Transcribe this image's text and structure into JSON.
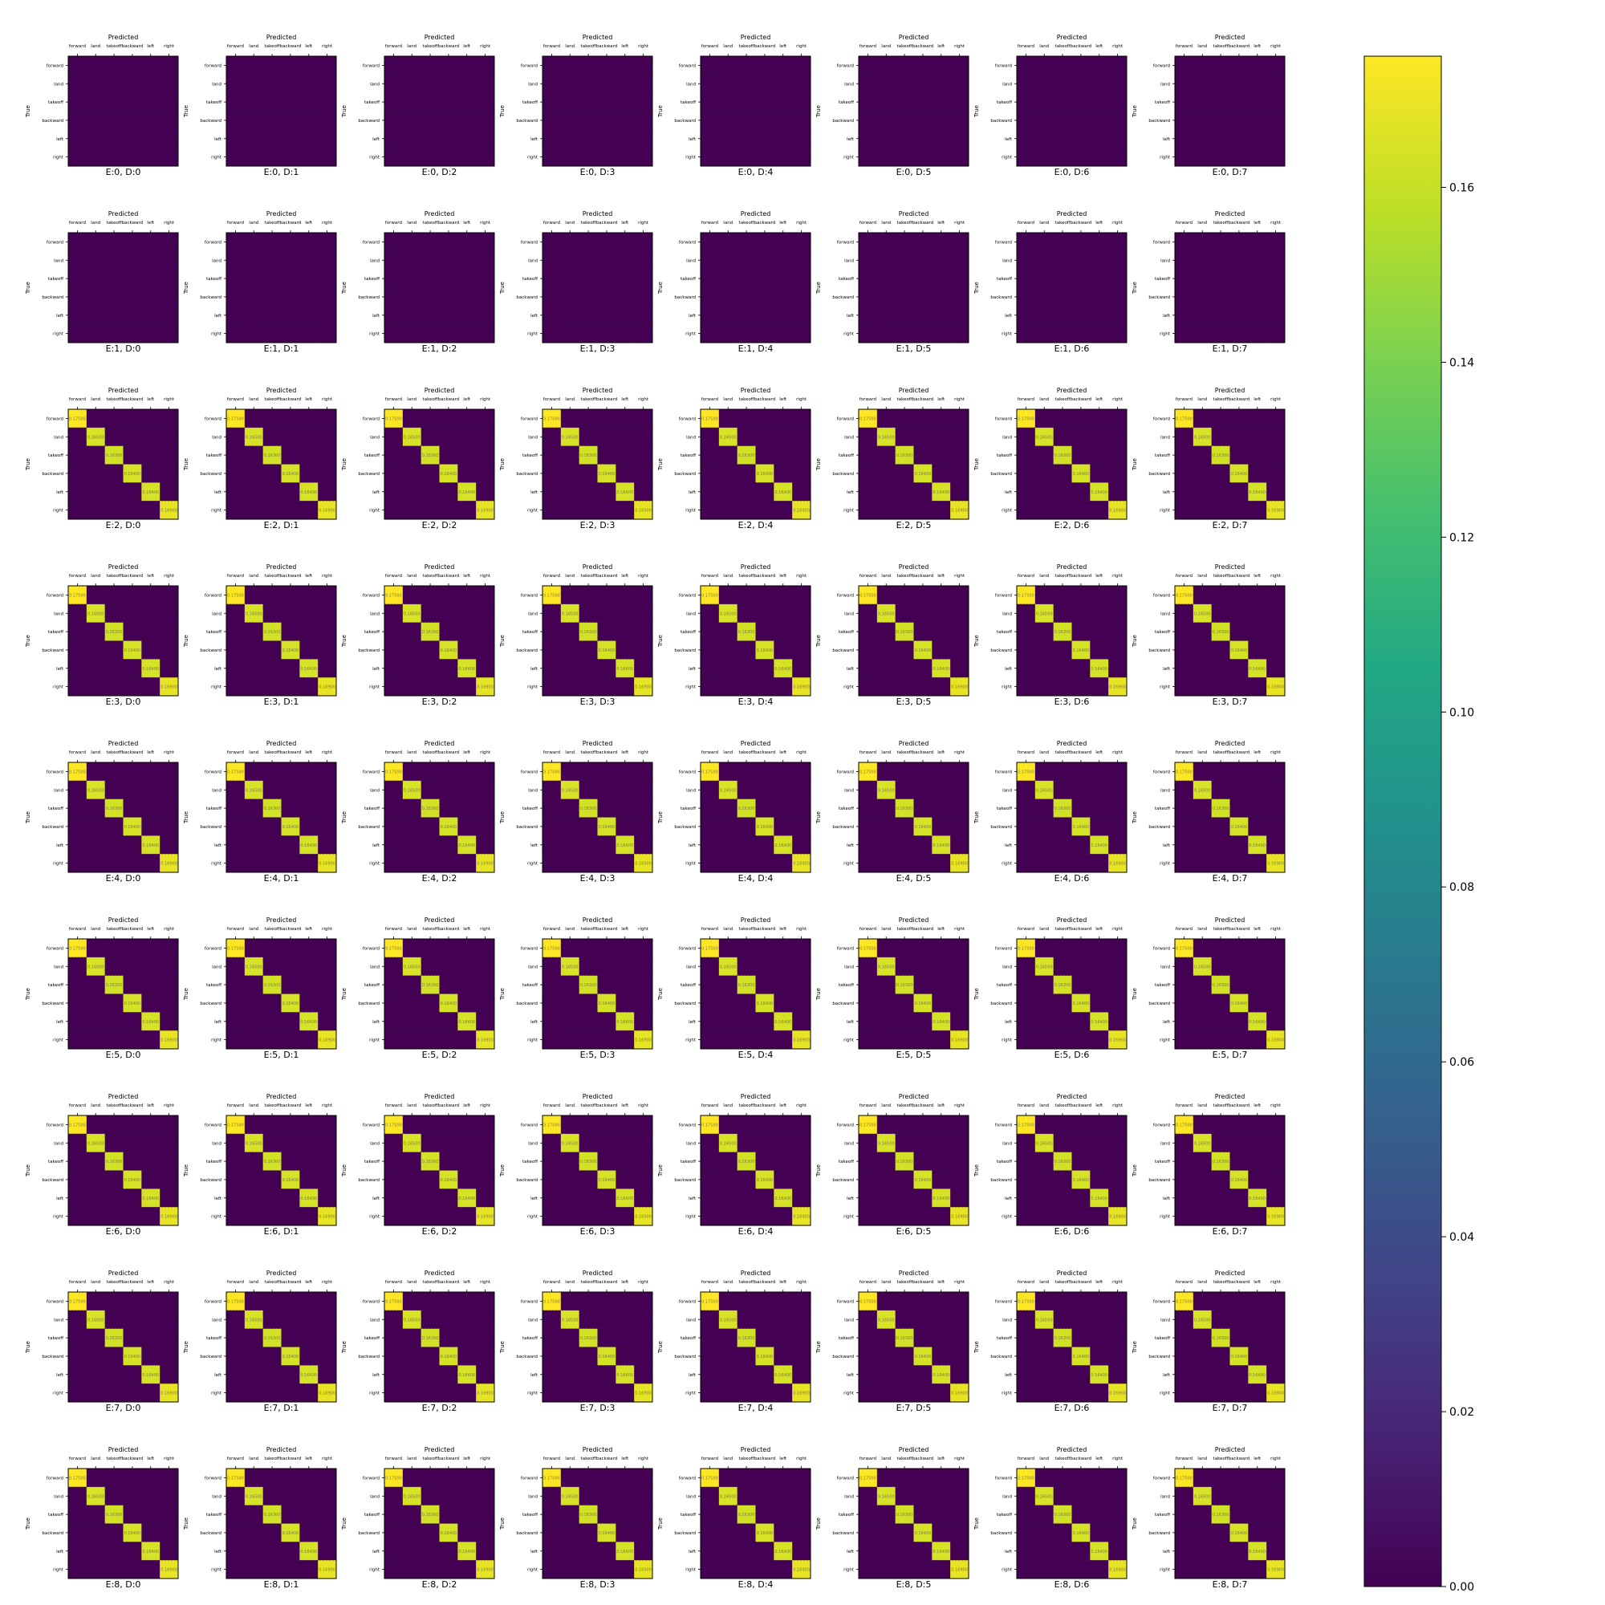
{
  "chart_data": {
    "type": "heatmap",
    "grid_rows": [
      "E:0",
      "E:1",
      "E:2",
      "E:3",
      "E:4",
      "E:5",
      "E:6",
      "E:7",
      "E:8"
    ],
    "grid_cols": [
      "D:0",
      "D:1",
      "D:2",
      "D:3",
      "D:4",
      "D:5",
      "D:6",
      "D:7"
    ],
    "subplot_xlabel": "Predicted",
    "subplot_ylabel": "True",
    "classes": [
      "forward",
      "land",
      "takeoff",
      "backward",
      "left",
      "right"
    ],
    "blank_rows": [
      "E:0",
      "E:1"
    ],
    "diagonal_values": [
      0.175,
      0.165,
      0.163,
      0.164,
      0.164,
      0.169
    ],
    "off_diagonal_value": 0.0,
    "cell_text_color": "#7f7f3f",
    "colormap": "viridis",
    "colorbar": {
      "min": 0.0,
      "max": 0.175,
      "ticks": [
        0.0,
        0.02,
        0.04,
        0.06,
        0.08,
        0.1,
        0.12,
        0.14,
        0.16
      ],
      "tick_labels": [
        "0.00",
        "0.02",
        "0.04",
        "0.06",
        "0.08",
        "0.10",
        "0.12",
        "0.14",
        "0.16"
      ]
    }
  }
}
